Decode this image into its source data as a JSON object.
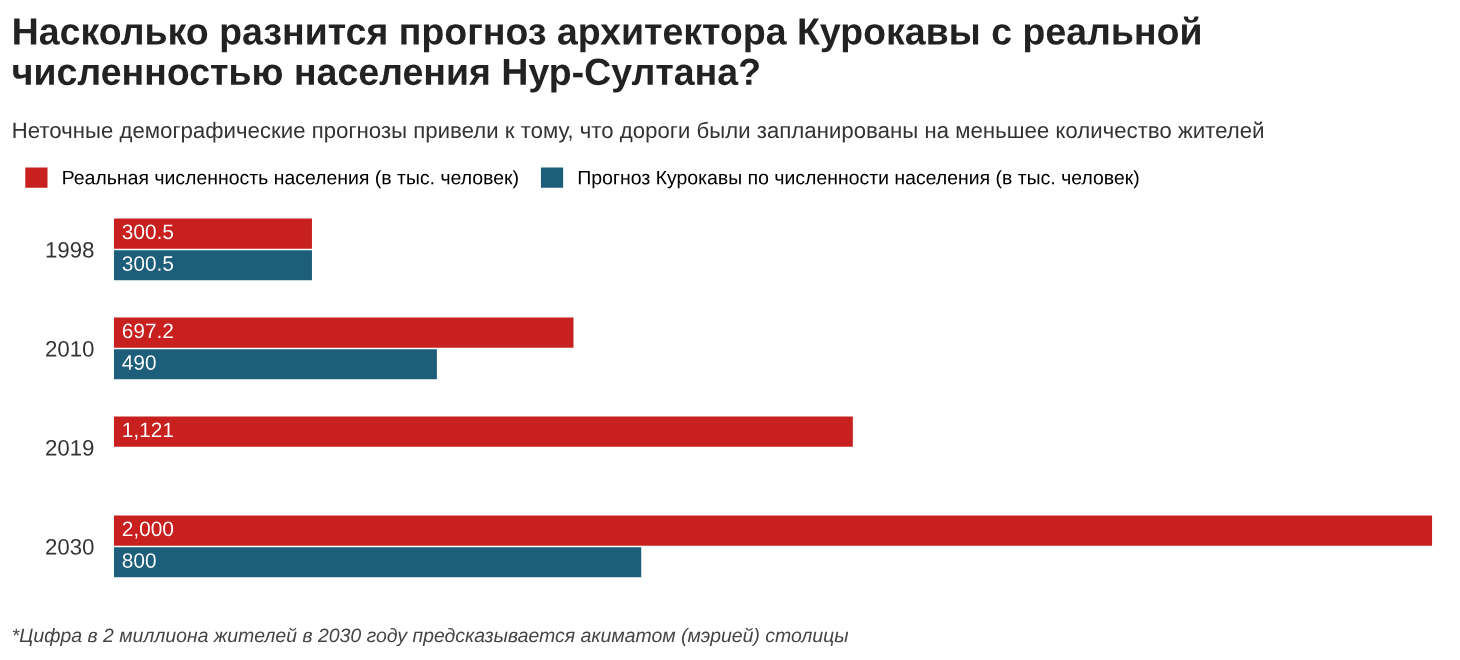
{
  "chart_data": {
    "type": "bar",
    "orientation": "horizontal",
    "title": "Насколько разнится прогноз архитектора Курокавы с реальной\nчисленностью населения Нур-Султана?",
    "subtitle": "Неточные демографические прогнозы привели к тому, что дороги были запланированы на меньшее количество жителей",
    "categories": [
      "1998",
      "2010",
      "2019",
      "2030"
    ],
    "series": [
      {
        "name": "Реальная численность населения (в тыс. человек)",
        "color": "#c8201f",
        "values": [
          300.5,
          697.2,
          1121,
          2000
        ],
        "value_labels": [
          "300.5",
          "697.2",
          "1,121",
          "2,000"
        ]
      },
      {
        "name": "Прогноз Курокавы по численности населения (в тыс. человек)",
        "color": "#1d5f7a",
        "values": [
          300.5,
          490,
          null,
          800
        ],
        "value_labels": [
          "300.5",
          "490",
          null,
          "800"
        ]
      }
    ],
    "xlim": [
      0,
      2000
    ],
    "tick_labels": "y",
    "legend": "top left",
    "grid": false,
    "annotations": [
      "*Цифра в 2 миллиона жителей в 2030 году предсказывается акиматом (мэрией) столицы"
    ]
  }
}
